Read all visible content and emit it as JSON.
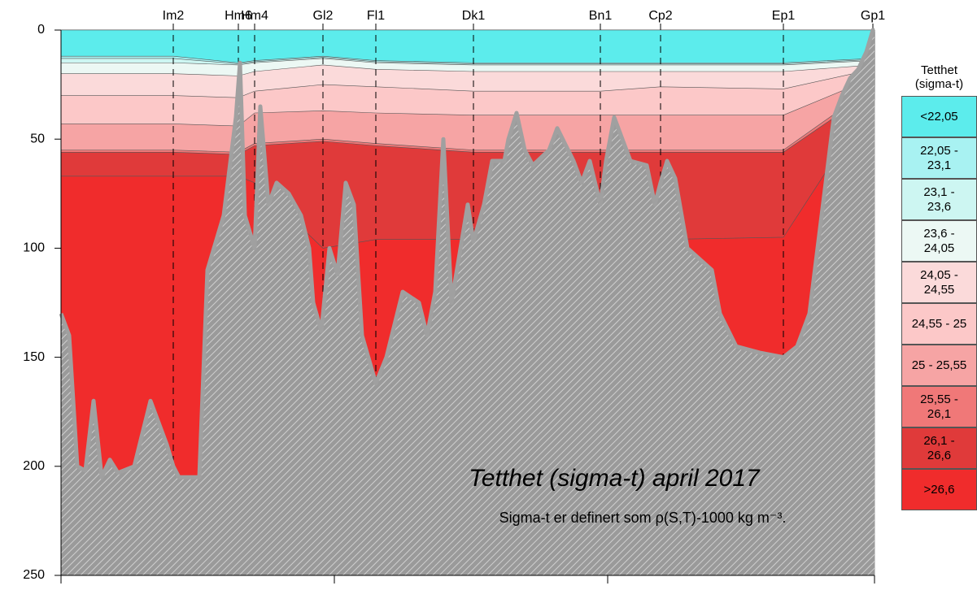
{
  "chart_data": {
    "type": "section",
    "title": "Tetthet (sigma-t) april 2017",
    "note": "Sigma-t er definert som ρ(S,T)-1000 kg m⁻³.",
    "legend_title": "Tetthet (sigma-t)",
    "ylim": [
      0,
      250
    ],
    "yticks": [
      0,
      50,
      100,
      150,
      200,
      250
    ],
    "xlim": [
      0,
      100
    ],
    "xticks": [
      0,
      33.6,
      67.2,
      100
    ],
    "stations": [
      "Im2",
      "Hm6",
      "Hm4",
      "Gl2",
      "Fl1",
      "Dk1",
      "Bn1",
      "Cp2",
      "Ep1",
      "Gp1"
    ],
    "station_x": [
      13.8,
      21.8,
      23.8,
      32.2,
      38.7,
      50.7,
      66.3,
      73.7,
      88.8,
      99.8
    ],
    "series": [
      {
        "name": "<22,05",
        "color": "#5cecec",
        "values": [
          12,
          15,
          14,
          12,
          14,
          15,
          15,
          15,
          15,
          13
        ]
      },
      {
        "name": "22,05 - 23,1",
        "color": "#a8f2f2",
        "values": [
          13,
          15.5,
          14.5,
          12.5,
          14.5,
          15.5,
          15.5,
          15.5,
          15.5,
          13.5
        ]
      },
      {
        "name": "23,1 - 23,6",
        "color": "#cdf6f2",
        "values": [
          15,
          16,
          15,
          13,
          15,
          16,
          16,
          16,
          16,
          14
        ]
      },
      {
        "name": "23,6 - 24,05",
        "color": "#ecf8f4",
        "values": [
          20,
          21,
          19,
          16,
          18,
          19,
          19,
          19,
          19,
          16
        ]
      },
      {
        "name": "24,05 - 24,55",
        "color": "#fbdada",
        "values": [
          30,
          31,
          28,
          25,
          26,
          28,
          28,
          26,
          27,
          18
        ]
      },
      {
        "name": "24,55 - 25",
        "color": "#fcc8c8",
        "values": [
          43,
          44,
          38,
          37,
          38,
          39,
          39,
          39,
          39,
          22
        ]
      },
      {
        "name": "25 - 25,55",
        "color": "#f6a4a4",
        "values": [
          55,
          56,
          52,
          50,
          52,
          55,
          55,
          55,
          55,
          26
        ]
      },
      {
        "name": "25,55 - 26,1",
        "color": "#f07878",
        "values": [
          56,
          57,
          53,
          51,
          53,
          56,
          56,
          56,
          56,
          28
        ]
      },
      {
        "name": "26,1 - 26,6",
        "color": "#e03a3a",
        "values": [
          67,
          67,
          70,
          100,
          96,
          96,
          96,
          96,
          95,
          32
        ]
      },
      {
        "name": ">26,6",
        "color": "#f02c2c",
        "values": [
          250,
          250,
          250,
          250,
          250,
          250,
          250,
          250,
          250,
          250
        ]
      }
    ],
    "seabed": {
      "color": "#a0a0a0",
      "x": [
        0,
        1,
        2,
        3,
        4,
        5,
        6,
        7,
        9,
        10,
        11,
        13,
        13.8,
        14.5,
        17,
        18,
        20,
        21.5,
        22,
        22.6,
        23.8,
        24.5,
        25.5,
        26.5,
        28,
        29.5,
        30.5,
        31,
        32,
        33,
        34,
        35,
        36,
        37,
        38.7,
        40,
        42,
        44,
        45,
        46,
        47,
        48,
        50,
        50.7,
        52,
        53,
        54.5,
        55,
        56,
        57,
        58,
        60,
        61,
        63,
        64,
        65,
        66.3,
        67,
        68,
        70,
        72,
        73,
        73.7,
        74.5,
        75.5,
        77,
        80,
        81,
        83,
        86,
        88.8,
        90.5,
        92,
        93,
        94,
        95,
        96,
        97,
        98,
        99,
        99.8,
        100
      ],
      "depth": [
        130,
        140,
        200,
        202,
        170,
        205,
        197,
        203,
        200,
        185,
        170,
        190,
        200,
        205,
        205,
        110,
        85,
        40,
        15,
        85,
        100,
        35,
        80,
        70,
        75,
        85,
        100,
        125,
        138,
        100,
        112,
        70,
        80,
        140,
        162,
        150,
        120,
        125,
        140,
        120,
        50,
        125,
        80,
        97,
        80,
        60,
        60,
        50,
        38,
        55,
        62,
        55,
        45,
        60,
        70,
        60,
        80,
        60,
        40,
        60,
        62,
        80,
        70,
        60,
        68,
        100,
        110,
        130,
        145,
        148,
        150,
        145,
        130,
        100,
        70,
        40,
        30,
        22,
        18,
        10,
        0,
        0
      ]
    }
  }
}
